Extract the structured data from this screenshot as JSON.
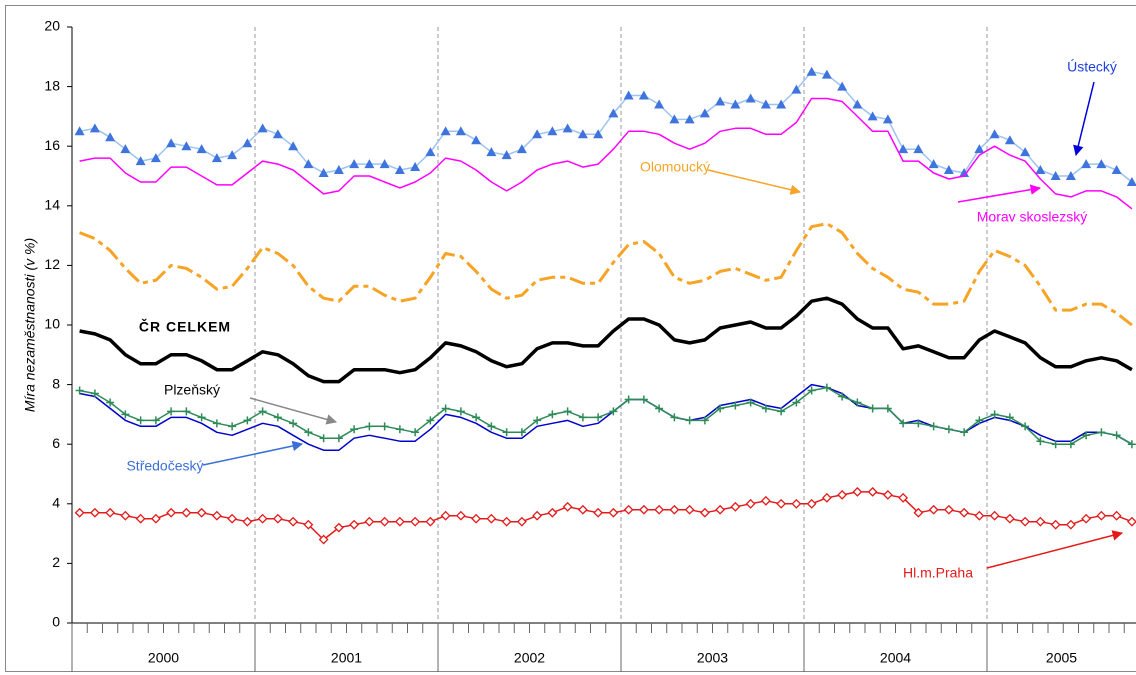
{
  "chart_data": {
    "type": "line",
    "y_label": "Míra nezaměstnanosti (v %)",
    "ylim": [
      0,
      20
    ],
    "yticks": [
      0,
      2,
      4,
      6,
      8,
      10,
      12,
      14,
      16,
      18,
      20
    ],
    "years": [
      "2000",
      "2001",
      "2002",
      "2003",
      "2004",
      "2005"
    ],
    "categories": [
      null,
      null,
      null,
      null,
      null,
      null,
      null,
      null,
      null,
      null,
      null,
      null,
      null,
      null,
      null,
      null,
      null,
      null,
      null,
      null,
      null,
      null,
      null,
      null,
      null,
      null,
      null,
      null,
      null,
      null,
      null,
      null,
      null,
      null,
      null,
      null,
      null,
      null,
      null,
      null,
      null,
      null,
      null,
      null,
      null,
      null,
      null,
      null,
      null,
      null,
      null,
      null,
      null,
      null,
      null,
      null,
      null,
      null,
      null,
      null,
      null,
      null,
      null,
      null,
      null,
      null,
      null,
      null,
      null,
      null
    ],
    "series": [
      {
        "name": "Ústecký",
        "color": "#3f74dc",
        "marker": "triangle",
        "values": [
          16.5,
          16.6,
          16.3,
          15.9,
          15.5,
          15.6,
          16.1,
          16.0,
          15.9,
          15.6,
          15.7,
          16.1,
          16.6,
          16.4,
          16.0,
          15.4,
          15.1,
          15.2,
          15.4,
          15.4,
          15.4,
          15.2,
          15.3,
          15.8,
          16.5,
          16.5,
          16.2,
          15.8,
          15.7,
          15.9,
          16.4,
          16.5,
          16.6,
          16.4,
          16.4,
          17.1,
          17.7,
          17.7,
          17.4,
          16.9,
          16.9,
          17.1,
          17.5,
          17.4,
          17.6,
          17.4,
          17.4,
          17.9,
          18.5,
          18.4,
          18.0,
          17.4,
          17.0,
          16.9,
          15.9,
          15.9,
          15.4,
          15.2,
          15.1,
          15.9,
          16.4,
          16.2,
          15.8,
          15.2,
          15.0,
          15.0,
          15.4,
          15.4,
          15.2,
          14.8
        ]
      },
      {
        "name": "Morav skoslezský",
        "color": "#ff00ff",
        "values": [
          15.5,
          15.6,
          15.6,
          15.1,
          14.8,
          14.8,
          15.3,
          15.3,
          15.0,
          14.7,
          14.7,
          15.1,
          15.5,
          15.4,
          15.2,
          14.8,
          14.4,
          14.5,
          15.0,
          15.0,
          14.8,
          14.6,
          14.8,
          15.1,
          15.6,
          15.5,
          15.2,
          14.8,
          14.5,
          14.8,
          15.2,
          15.4,
          15.5,
          15.3,
          15.4,
          15.9,
          16.5,
          16.5,
          16.4,
          16.1,
          15.9,
          16.1,
          16.5,
          16.6,
          16.6,
          16.4,
          16.4,
          16.8,
          17.6,
          17.6,
          17.5,
          17.0,
          16.5,
          16.5,
          15.5,
          15.5,
          15.1,
          14.9,
          15.0,
          15.7,
          16.0,
          15.7,
          15.5,
          14.9,
          14.4,
          14.3,
          14.5,
          14.5,
          14.3,
          13.9
        ]
      },
      {
        "name": "Olomoucký",
        "color": "#f7a325",
        "dashed": true,
        "values": [
          13.1,
          12.9,
          12.5,
          11.9,
          11.4,
          11.5,
          12.0,
          11.9,
          11.6,
          11.2,
          11.3,
          11.9,
          12.6,
          12.4,
          12.0,
          11.3,
          10.9,
          10.8,
          11.3,
          11.3,
          11.0,
          10.8,
          10.9,
          11.6,
          12.4,
          12.3,
          11.8,
          11.2,
          10.9,
          11.0,
          11.5,
          11.6,
          11.6,
          11.4,
          11.4,
          12.1,
          12.7,
          12.8,
          12.4,
          11.6,
          11.4,
          11.5,
          11.8,
          11.9,
          11.7,
          11.5,
          11.6,
          12.5,
          13.3,
          13.4,
          13.1,
          12.4,
          11.9,
          11.6,
          11.2,
          11.1,
          10.7,
          10.7,
          10.8,
          11.8,
          12.5,
          12.3,
          12.0,
          11.3,
          10.5,
          10.5,
          10.7,
          10.7,
          10.4,
          10.0
        ]
      },
      {
        "name": "ČR CELKEM",
        "color": "#000000",
        "values": [
          9.8,
          9.7,
          9.5,
          9.0,
          8.7,
          8.7,
          9.0,
          9.0,
          8.8,
          8.5,
          8.5,
          8.8,
          9.1,
          9.0,
          8.7,
          8.3,
          8.1,
          8.1,
          8.5,
          8.5,
          8.5,
          8.4,
          8.5,
          8.9,
          9.4,
          9.3,
          9.1,
          8.8,
          8.6,
          8.7,
          9.2,
          9.4,
          9.4,
          9.3,
          9.3,
          9.8,
          10.2,
          10.2,
          10.0,
          9.5,
          9.4,
          9.5,
          9.9,
          10.0,
          10.1,
          9.9,
          9.9,
          10.3,
          10.8,
          10.9,
          10.7,
          10.2,
          9.9,
          9.9,
          9.2,
          9.3,
          9.1,
          8.9,
          8.9,
          9.5,
          9.8,
          9.6,
          9.4,
          8.9,
          8.6,
          8.6,
          8.8,
          8.9,
          8.8,
          8.5
        ]
      },
      {
        "name": "Plzeňský",
        "color": "#0000cc",
        "values": [
          7.7,
          7.6,
          7.2,
          6.8,
          6.6,
          6.6,
          6.9,
          6.9,
          6.7,
          6.4,
          6.3,
          6.5,
          6.7,
          6.6,
          6.3,
          6.0,
          5.8,
          5.8,
          6.2,
          6.3,
          6.2,
          6.1,
          6.1,
          6.5,
          7.0,
          6.9,
          6.7,
          6.4,
          6.2,
          6.2,
          6.6,
          6.7,
          6.8,
          6.6,
          6.7,
          7.1,
          7.5,
          7.5,
          7.2,
          6.9,
          6.8,
          6.9,
          7.3,
          7.4,
          7.5,
          7.3,
          7.2,
          7.6,
          8.0,
          7.9,
          7.7,
          7.3,
          7.2,
          7.2,
          6.7,
          6.8,
          6.6,
          6.5,
          6.4,
          6.7,
          6.9,
          6.8,
          6.6,
          6.3,
          6.1,
          6.1,
          6.4,
          6.4,
          6.3,
          6.0
        ]
      },
      {
        "name": "Středočeský",
        "color": "#2e8b57",
        "marker": "plus",
        "values": [
          7.8,
          7.7,
          7.4,
          7.0,
          6.8,
          6.8,
          7.1,
          7.1,
          6.9,
          6.7,
          6.6,
          6.8,
          7.1,
          6.9,
          6.7,
          6.4,
          6.2,
          6.2,
          6.5,
          6.6,
          6.6,
          6.5,
          6.4,
          6.8,
          7.2,
          7.1,
          6.9,
          6.6,
          6.4,
          6.4,
          6.8,
          7.0,
          7.1,
          6.9,
          6.9,
          7.1,
          7.5,
          7.5,
          7.2,
          6.9,
          6.8,
          6.8,
          7.2,
          7.3,
          7.4,
          7.2,
          7.1,
          7.4,
          7.8,
          7.9,
          7.6,
          7.4,
          7.2,
          7.2,
          6.7,
          6.7,
          6.6,
          6.5,
          6.4,
          6.8,
          7.0,
          6.9,
          6.6,
          6.1,
          6.0,
          6.0,
          6.3,
          6.4,
          6.3,
          6.0
        ]
      },
      {
        "name": "Hl.m.Praha",
        "color": "#e41a1a",
        "marker": "diamond",
        "values": [
          3.7,
          3.7,
          3.7,
          3.6,
          3.5,
          3.5,
          3.7,
          3.7,
          3.7,
          3.6,
          3.5,
          3.4,
          3.5,
          3.5,
          3.4,
          3.3,
          2.8,
          3.2,
          3.3,
          3.4,
          3.4,
          3.4,
          3.4,
          3.4,
          3.6,
          3.6,
          3.5,
          3.5,
          3.4,
          3.4,
          3.6,
          3.7,
          3.9,
          3.8,
          3.7,
          3.7,
          3.8,
          3.8,
          3.8,
          3.8,
          3.8,
          3.7,
          3.8,
          3.9,
          4.0,
          4.1,
          4.0,
          4.0,
          4.0,
          4.2,
          4.3,
          4.4,
          4.4,
          4.3,
          4.2,
          3.7,
          3.8,
          3.8,
          3.7,
          3.6,
          3.6,
          3.5,
          3.4,
          3.4,
          3.3,
          3.3,
          3.5,
          3.6,
          3.6,
          3.4
        ]
      }
    ]
  }
}
